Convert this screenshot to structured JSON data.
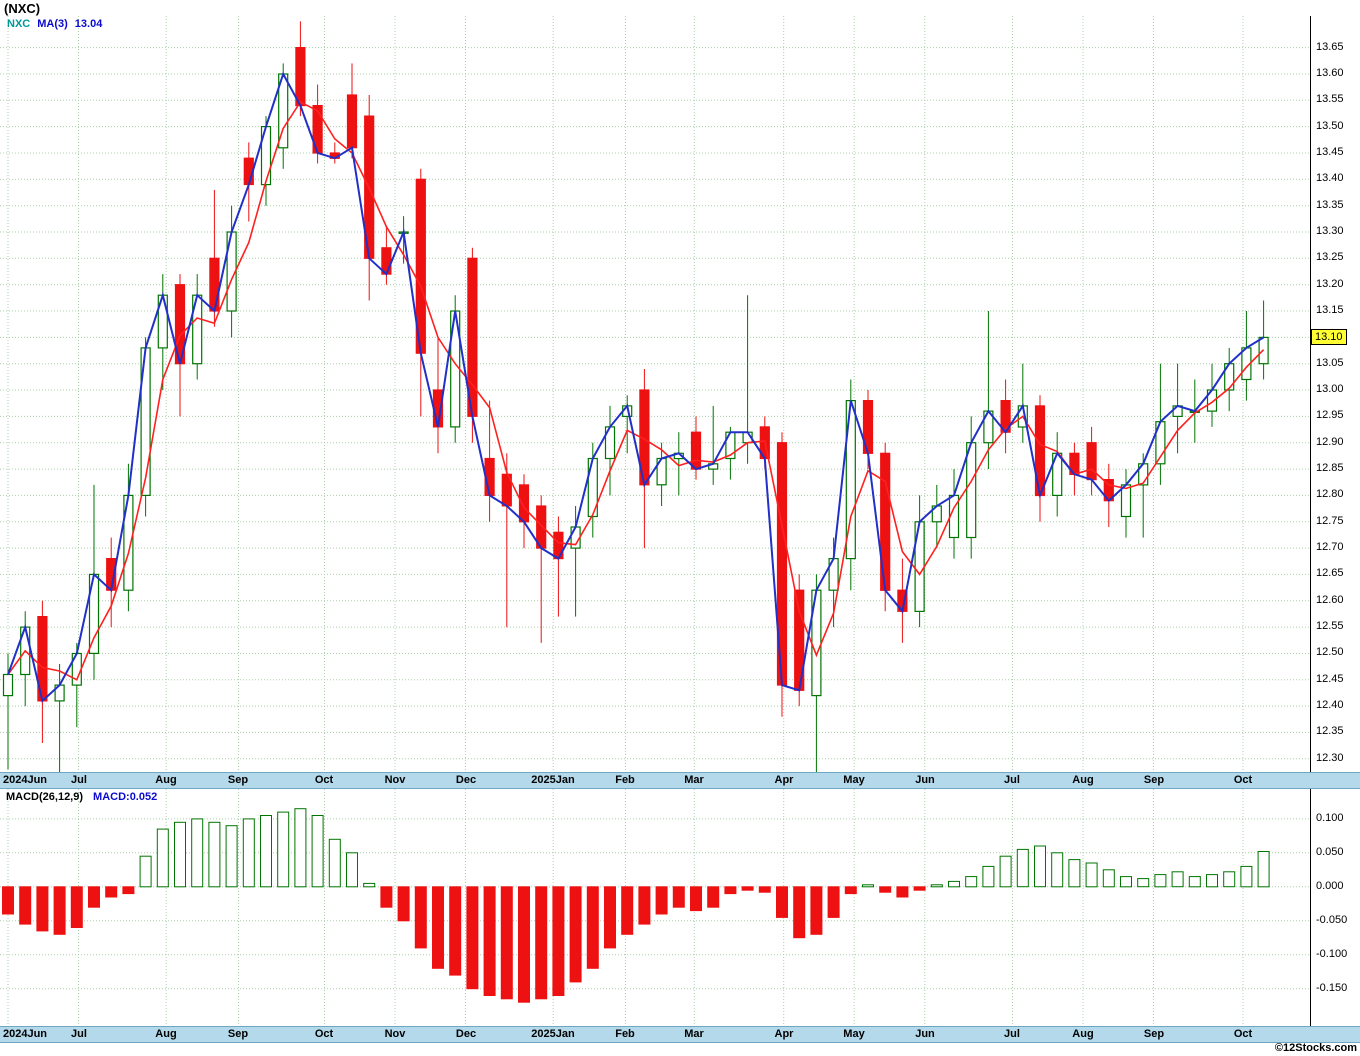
{
  "title": "(NXC)",
  "price_panel": {
    "legend": {
      "symbol": "NXC",
      "ma_label": "MA(3)",
      "ma_value": "13.04"
    },
    "last_price": "13.10"
  },
  "macd_panel": {
    "legend_label": "MACD(26,12,9)",
    "legend_value": "MACD:0.052"
  },
  "watermark": "©12Stocks.com",
  "colors": {
    "up_candle": "#007400",
    "down_candle": "#ee1111",
    "ma3_line": "#ff2020",
    "close_line": "#2030c8",
    "grid": "#abcfab",
    "axis_strip": "#b3d9ea",
    "highlight_bg": "#ffff33",
    "symbol_color": "#009898",
    "blue_text": "#0b0bd0",
    "plot_border": "#000000"
  },
  "x_axis": {
    "labels": [
      "2024Jun",
      "Jul",
      "Aug",
      "Sep",
      "Oct",
      "Nov",
      "Dec",
      "2025Jan",
      "Feb",
      "Mar",
      "Apr",
      "May",
      "Jun",
      "Jul",
      "Aug",
      "Sep",
      "Oct"
    ],
    "week_positions": [
      0,
      4.1,
      9.2,
      13.4,
      18.4,
      22.5,
      26.6,
      31.7,
      35.9,
      39.9,
      45.1,
      49.2,
      53.3,
      58.4,
      62.5,
      66.6,
      71.8
    ]
  },
  "price_axis": {
    "ticks": [
      13.65,
      13.6,
      13.55,
      13.5,
      13.45,
      13.4,
      13.35,
      13.3,
      13.25,
      13.2,
      13.15,
      13.1,
      13.05,
      13.0,
      12.95,
      12.9,
      12.85,
      12.8,
      12.75,
      12.7,
      12.65,
      12.6,
      12.55,
      12.5,
      12.45,
      12.4,
      12.35,
      12.3
    ],
    "min": 12.275,
    "max": 13.71
  },
  "macd_axis": {
    "ticks": [
      0.1,
      0.05,
      0.0,
      -0.05,
      -0.1,
      -0.15
    ],
    "min": -0.205,
    "max": 0.144
  },
  "chart_data": [
    {
      "type": "candlestick",
      "title": "NXC weekly price with MA(3)=13.04 and close line",
      "x_labels": [
        "2024Jun",
        "Jul",
        "Aug",
        "Sep",
        "Oct",
        "Nov",
        "Dec",
        "2025Jan",
        "Feb",
        "Mar",
        "Apr",
        "May",
        "Jun",
        "Jul",
        "Aug",
        "Sep",
        "Oct"
      ],
      "ylim": [
        12.275,
        13.71
      ],
      "ohlc": [
        [
          12.42,
          12.5,
          12.28,
          12.46
        ],
        [
          12.46,
          12.58,
          12.4,
          12.55
        ],
        [
          12.57,
          12.6,
          12.33,
          12.41
        ],
        [
          12.41,
          12.48,
          12.27,
          12.44
        ],
        [
          12.44,
          12.52,
          12.36,
          12.5
        ],
        [
          12.5,
          12.82,
          12.45,
          12.65
        ],
        [
          12.68,
          12.72,
          12.55,
          12.62
        ],
        [
          12.62,
          12.86,
          12.58,
          12.8
        ],
        [
          12.8,
          13.1,
          12.76,
          13.08
        ],
        [
          13.08,
          13.22,
          13.0,
          13.18
        ],
        [
          13.2,
          13.22,
          12.95,
          13.05
        ],
        [
          13.05,
          13.22,
          13.02,
          13.18
        ],
        [
          13.25,
          13.38,
          13.12,
          13.15
        ],
        [
          13.15,
          13.35,
          13.1,
          13.3
        ],
        [
          13.44,
          13.47,
          13.32,
          13.39
        ],
        [
          13.39,
          13.52,
          13.35,
          13.5
        ],
        [
          13.46,
          13.62,
          13.42,
          13.6
        ],
        [
          13.65,
          13.7,
          13.52,
          13.54
        ],
        [
          13.54,
          13.58,
          13.43,
          13.45
        ],
        [
          13.45,
          13.47,
          13.43,
          13.44
        ],
        [
          13.56,
          13.62,
          13.44,
          13.46
        ],
        [
          13.52,
          13.56,
          13.17,
          13.25
        ],
        [
          13.27,
          13.31,
          13.2,
          13.22
        ],
        [
          13.3,
          13.33,
          13.24,
          13.3
        ],
        [
          13.4,
          13.42,
          12.95,
          13.07
        ],
        [
          13.0,
          13.1,
          12.88,
          12.93
        ],
        [
          12.93,
          13.18,
          12.9,
          13.15
        ],
        [
          13.25,
          13.27,
          12.9,
          12.95
        ],
        [
          12.87,
          12.98,
          12.75,
          12.8
        ],
        [
          12.84,
          12.88,
          12.55,
          12.78
        ],
        [
          12.82,
          12.84,
          12.7,
          12.75
        ],
        [
          12.78,
          12.8,
          12.52,
          12.7
        ],
        [
          12.73,
          12.76,
          12.57,
          12.68
        ],
        [
          12.7,
          12.78,
          12.57,
          12.74
        ],
        [
          12.76,
          12.9,
          12.72,
          12.87
        ],
        [
          12.87,
          12.97,
          12.8,
          12.93
        ],
        [
          12.95,
          12.99,
          12.88,
          12.97
        ],
        [
          13.0,
          13.04,
          12.7,
          12.82
        ],
        [
          12.82,
          12.9,
          12.78,
          12.87
        ],
        [
          12.87,
          12.92,
          12.8,
          12.88
        ],
        [
          12.92,
          12.95,
          12.83,
          12.85
        ],
        [
          12.85,
          12.97,
          12.82,
          12.86
        ],
        [
          12.87,
          12.93,
          12.83,
          12.92
        ],
        [
          12.9,
          13.18,
          12.86,
          12.92
        ],
        [
          12.93,
          12.95,
          12.85,
          12.87
        ],
        [
          12.9,
          12.92,
          12.38,
          12.44
        ],
        [
          12.62,
          12.65,
          12.4,
          12.43
        ],
        [
          12.42,
          12.65,
          12.25,
          12.62
        ],
        [
          12.62,
          12.72,
          12.55,
          12.68
        ],
        [
          12.68,
          13.02,
          12.62,
          12.98
        ],
        [
          12.98,
          13.0,
          12.85,
          12.88
        ],
        [
          12.88,
          12.9,
          12.58,
          12.62
        ],
        [
          12.62,
          12.68,
          12.52,
          12.58
        ],
        [
          12.58,
          12.8,
          12.55,
          12.75
        ],
        [
          12.75,
          12.82,
          12.7,
          12.78
        ],
        [
          12.72,
          12.85,
          12.68,
          12.8
        ],
        [
          12.72,
          12.95,
          12.68,
          12.9
        ],
        [
          12.9,
          13.15,
          12.85,
          12.96
        ],
        [
          12.98,
          13.02,
          12.88,
          12.92
        ],
        [
          12.93,
          13.05,
          12.9,
          12.97
        ],
        [
          12.97,
          12.99,
          12.75,
          12.8
        ],
        [
          12.8,
          12.92,
          12.76,
          12.88
        ],
        [
          12.88,
          12.9,
          12.8,
          12.84
        ],
        [
          12.9,
          12.93,
          12.8,
          12.83
        ],
        [
          12.83,
          12.86,
          12.74,
          12.79
        ],
        [
          12.76,
          12.85,
          12.72,
          12.82
        ],
        [
          12.82,
          12.88,
          12.72,
          12.86
        ],
        [
          12.86,
          13.05,
          12.82,
          12.94
        ],
        [
          12.95,
          13.05,
          12.88,
          12.97
        ],
        [
          12.96,
          13.02,
          12.9,
          12.96
        ],
        [
          12.96,
          13.05,
          12.93,
          13.0
        ],
        [
          13.0,
          13.08,
          12.96,
          13.05
        ],
        [
          13.02,
          13.15,
          12.98,
          13.08
        ],
        [
          13.05,
          13.17,
          13.02,
          13.1
        ]
      ]
    },
    {
      "type": "bar",
      "title": "MACD(26,12,9) histogram, last value 0.052",
      "ylim": [
        -0.205,
        0.144
      ],
      "values": [
        -0.04,
        -0.055,
        -0.065,
        -0.07,
        -0.06,
        -0.03,
        -0.015,
        -0.01,
        0.045,
        0.085,
        0.095,
        0.1,
        0.095,
        0.09,
        0.1,
        0.105,
        0.11,
        0.115,
        0.105,
        0.07,
        0.05,
        0.005,
        -0.03,
        -0.05,
        -0.09,
        -0.12,
        -0.13,
        -0.15,
        -0.16,
        -0.165,
        -0.17,
        -0.165,
        -0.16,
        -0.14,
        -0.12,
        -0.09,
        -0.07,
        -0.055,
        -0.04,
        -0.03,
        -0.035,
        -0.03,
        -0.01,
        -0.005,
        -0.008,
        -0.045,
        -0.075,
        -0.07,
        -0.045,
        -0.01,
        0.003,
        -0.008,
        -0.015,
        -0.005,
        0.003,
        0.008,
        0.015,
        0.03,
        0.045,
        0.055,
        0.06,
        0.05,
        0.04,
        0.035,
        0.025,
        0.015,
        0.012,
        0.018,
        0.022,
        0.015,
        0.018,
        0.022,
        0.03,
        0.052
      ]
    }
  ]
}
